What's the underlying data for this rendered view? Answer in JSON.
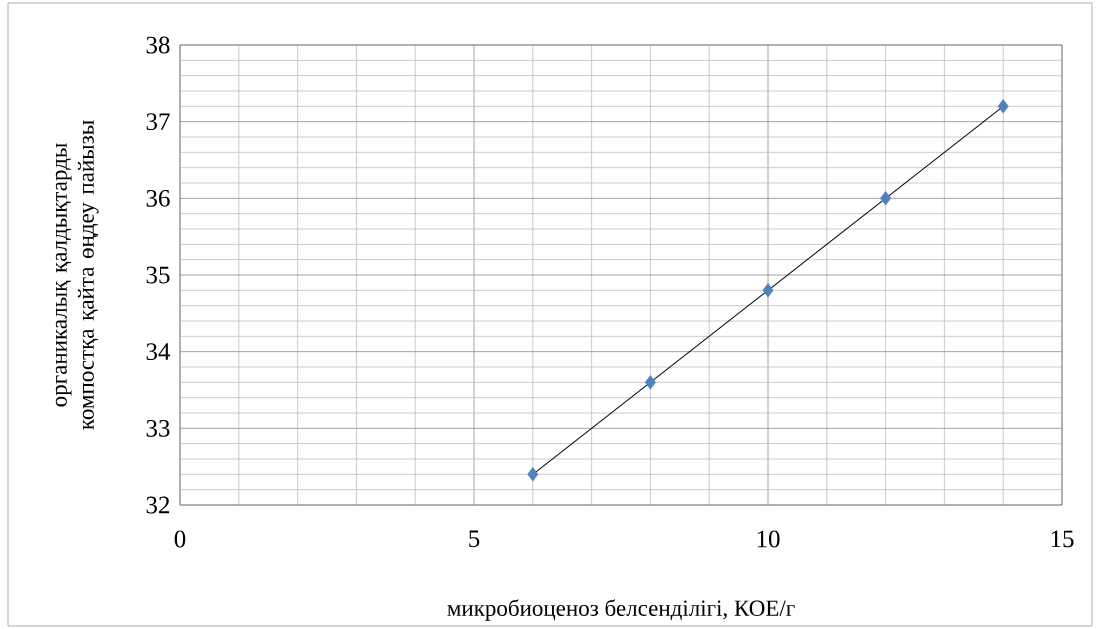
{
  "chart_data": {
    "type": "scatter",
    "xlabel": "микробиоценоз белсенділігі, КОЕ/г",
    "ylabel": "органикалық қалдықтарды компостқа қайта өңдеу пайызы",
    "x": [
      6,
      8,
      10,
      12,
      14
    ],
    "series": [
      {
        "color": "#4f81bd",
        "marker": "diamond",
        "values": [
          32.4,
          33.6,
          34.8,
          36.0,
          37.2
        ]
      },
      {
        "type": "line",
        "color": "#000000",
        "marker": "none",
        "x": [
          6,
          14
        ],
        "values": [
          32.4,
          37.2
        ]
      }
    ],
    "xlim": [
      0,
      15
    ],
    "ylim": [
      32,
      38
    ],
    "xticks": [
      0,
      5,
      10,
      15
    ],
    "yticks": [
      32,
      33,
      34,
      35,
      36,
      37,
      38
    ],
    "grid": true
  }
}
